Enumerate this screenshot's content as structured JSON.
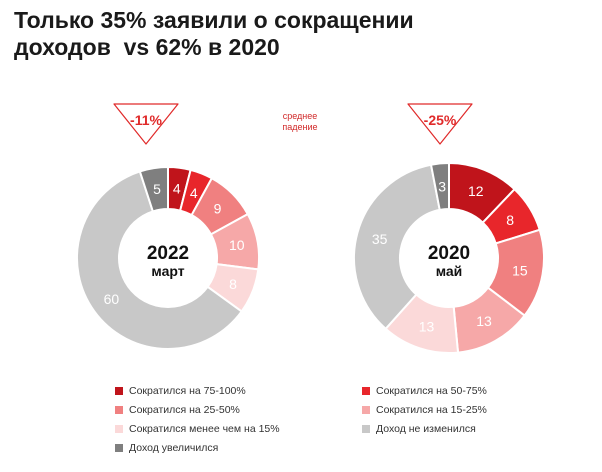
{
  "title": {
    "line1": "Только 35% заявили о сокращении",
    "line2": "доходов  vs 62% в 2020"
  },
  "note": {
    "line1": "среднее",
    "line2": "падение"
  },
  "colors": {
    "s1": "#c0141b",
    "s2": "#e8262b",
    "s3": "#f08080",
    "s4": "#f6a8a8",
    "s5": "#fbd9d9",
    "s6": "#c8c8c8",
    "s7": "#7f7f7f",
    "accent": "#e02a2a"
  },
  "chart_data": [
    {
      "type": "pie",
      "center_label": [
        "2022",
        "март"
      ],
      "drop_label": "-11%",
      "series": [
        {
          "name": "Сократился на 75-100%",
          "value": 4,
          "color": "#c0141b"
        },
        {
          "name": "Сократился на 50-75%",
          "value": 4,
          "color": "#e8262b"
        },
        {
          "name": "Сократился на 25-50%",
          "value": 9,
          "color": "#f08080"
        },
        {
          "name": "Сократился на 15-25%",
          "value": 10,
          "color": "#f6a8a8"
        },
        {
          "name": "Сократился менее чем на 15%",
          "value": 8,
          "color": "#fbd9d9"
        },
        {
          "name": "Доход не изменился",
          "value": 60,
          "color": "#c8c8c8"
        },
        {
          "name": "Доход увеличился",
          "value": 5,
          "color": "#7f7f7f"
        }
      ]
    },
    {
      "type": "pie",
      "center_label": [
        "2020",
        "май"
      ],
      "drop_label": "-25%",
      "series": [
        {
          "name": "Сократился на 75-100%",
          "value": 12,
          "color": "#c0141b"
        },
        {
          "name": "Сократился на 50-75%",
          "value": 8,
          "color": "#e8262b"
        },
        {
          "name": "Сократился на 25-50%",
          "value": 15,
          "color": "#f08080"
        },
        {
          "name": "Сократился на 15-25%",
          "value": 13,
          "color": "#f6a8a8"
        },
        {
          "name": "Сократился менее чем на 15%",
          "value": 13,
          "color": "#fbd9d9"
        },
        {
          "name": "Доход не изменился",
          "value": 35,
          "color": "#c8c8c8"
        },
        {
          "name": "Доход увеличился",
          "value": 3,
          "color": "#7f7f7f"
        }
      ]
    }
  ],
  "legend": [
    {
      "label": "Сократился на 75-100%",
      "color": "#c0141b"
    },
    {
      "label": "Сократился на 50-75%",
      "color": "#e8262b"
    },
    {
      "label": "Сократился на 25-50%",
      "color": "#f08080"
    },
    {
      "label": "Сократился на 15-25%",
      "color": "#f6a8a8"
    },
    {
      "label": "Сократился менее чем на 15%",
      "color": "#fbd9d9"
    },
    {
      "label": "Доход не изменился",
      "color": "#c8c8c8"
    },
    {
      "label": "Доход увеличился",
      "color": "#7f7f7f"
    }
  ]
}
